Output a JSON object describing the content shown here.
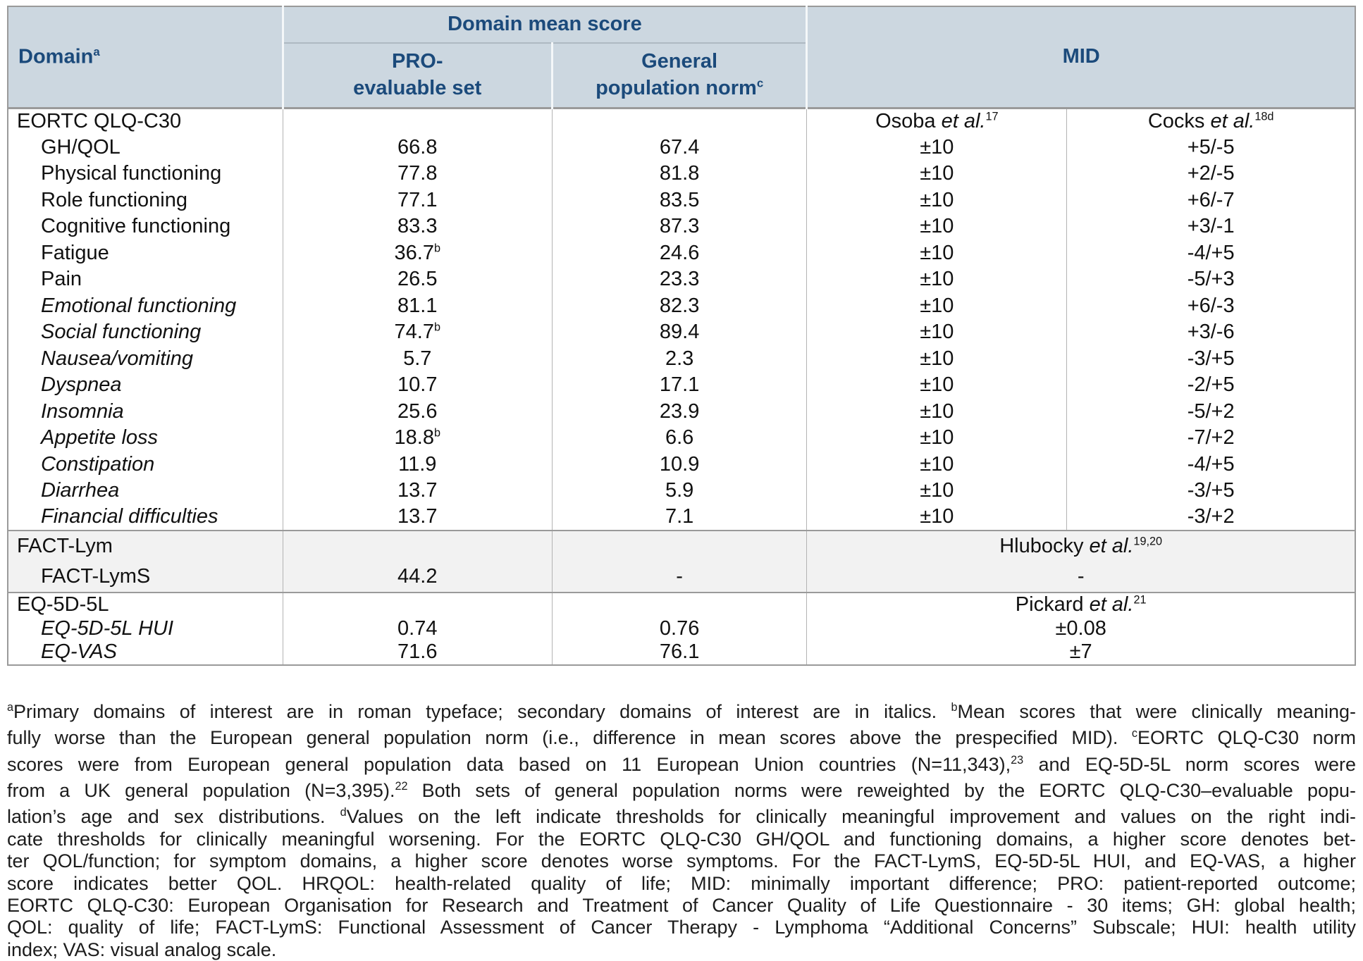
{
  "colors": {
    "header_bg": "#ccd7e0",
    "header_text": "#1b4a7b",
    "section_shade_bg": "#f2f2f2",
    "heavy_border": "#9a9a9a",
    "light_border": "#b3b3b3"
  },
  "table": {
    "header": {
      "domain_label": "Domain",
      "domain_sup": "a",
      "group_label": "Domain mean score",
      "col_pro_line1": "PRO-",
      "col_pro_line2": "evaluable set",
      "col_gen_line1": "General",
      "col_gen_line2": "population norm",
      "col_gen_sup": "c",
      "mid_label": "MID"
    },
    "sections": [
      {
        "id": "eortc",
        "shaded": false,
        "mid_split": true,
        "title_row": {
          "label": "EORTC QLQ-C30",
          "midA": {
            "text": "Osoba",
            "etal": "et al.",
            "sup": "17"
          },
          "midB": {
            "text": "Cocks",
            "etal": "et al.",
            "sup": "18d"
          }
        },
        "rows": [
          {
            "label": "GH/QOL",
            "italic": false,
            "pro": "66.8",
            "gen": "67.4",
            "midA": "±10",
            "midB": "+5/-5"
          },
          {
            "label": "Physical functioning",
            "italic": false,
            "pro": "77.8",
            "gen": "81.8",
            "midA": "±10",
            "midB": "+2/-5"
          },
          {
            "label": "Role functioning",
            "italic": false,
            "pro": "77.1",
            "gen": "83.5",
            "midA": "±10",
            "midB": "+6/-7"
          },
          {
            "label": "Cognitive functioning",
            "italic": false,
            "pro": "83.3",
            "gen": "87.3",
            "midA": "±10",
            "midB": "+3/-1"
          },
          {
            "label": "Fatigue",
            "italic": false,
            "pro": {
              "v": "36.7",
              "sup": "b"
            },
            "gen": "24.6",
            "midA": "±10",
            "midB": "-4/+5"
          },
          {
            "label": "Pain",
            "italic": false,
            "pro": "26.5",
            "gen": "23.3",
            "midA": "±10",
            "midB": "-5/+3"
          },
          {
            "label": "Emotional functioning",
            "italic": true,
            "pro": "81.1",
            "gen": "82.3",
            "midA": "±10",
            "midB": "+6/-3"
          },
          {
            "label": "Social functioning",
            "italic": true,
            "pro": {
              "v": "74.7",
              "sup": "b"
            },
            "gen": "89.4",
            "midA": "±10",
            "midB": "+3/-6"
          },
          {
            "label": "Nausea/vomiting",
            "italic": true,
            "pro": "5.7",
            "gen": "2.3",
            "midA": "±10",
            "midB": "-3/+5"
          },
          {
            "label": "Dyspnea",
            "italic": true,
            "pro": "10.7",
            "gen": "17.1",
            "midA": "±10",
            "midB": "-2/+5"
          },
          {
            "label": "Insomnia",
            "italic": true,
            "pro": "25.6",
            "gen": "23.9",
            "midA": "±10",
            "midB": "-5/+2"
          },
          {
            "label": "Appetite loss",
            "italic": true,
            "pro": {
              "v": "18.8",
              "sup": "b"
            },
            "gen": "6.6",
            "midA": "±10",
            "midB": "-7/+2"
          },
          {
            "label": "Constipation",
            "italic": true,
            "pro": "11.9",
            "gen": "10.9",
            "midA": "±10",
            "midB": "-4/+5"
          },
          {
            "label": "Diarrhea",
            "italic": true,
            "pro": "13.7",
            "gen": "5.9",
            "midA": "±10",
            "midB": "-3/+5"
          },
          {
            "label": "Financial difficulties",
            "italic": true,
            "pro": "13.7",
            "gen": "7.1",
            "midA": "±10",
            "midB": "-3/+2"
          }
        ]
      },
      {
        "id": "fact",
        "shaded": true,
        "mid_split": false,
        "title_row": {
          "label": "FACT-Lym",
          "mid": {
            "text": "Hlubocky",
            "etal": "et al.",
            "sup": "19,20"
          }
        },
        "rows": [
          {
            "label": "FACT-LymS",
            "italic": false,
            "pro": "44.2",
            "gen": "-",
            "mid": "-"
          }
        ]
      },
      {
        "id": "eq",
        "shaded": false,
        "mid_split": false,
        "title_row": {
          "label": "EQ-5D-5L",
          "mid": {
            "text": "Pickard",
            "etal": "et al.",
            "sup": "21"
          }
        },
        "rows": [
          {
            "label": "EQ-5D-5L HUI",
            "italic": true,
            "pro": "0.74",
            "gen": "0.76",
            "mid": "±0.08"
          },
          {
            "label": "EQ-VAS",
            "italic": true,
            "pro": "71.6",
            "gen": "76.1",
            "mid": "±7"
          }
        ]
      }
    ]
  },
  "footnotes": {
    "lines": [
      [
        {
          "sup": "a"
        },
        {
          "t": "Primary domains of interest are in roman typeface; secondary domains of interest are in italics. "
        },
        {
          "sup": "b"
        },
        {
          "t": "Mean scores that were clinically meaning-"
        }
      ],
      [
        {
          "t": "fully worse than the European general population norm (i.e., difference in mean scores above the prespecified MID). "
        },
        {
          "sup": "c"
        },
        {
          "t": "EORTC QLQ-C30 norm"
        }
      ],
      [
        {
          "t": "scores were from European general population data based on 11 European Union countries (N=11,343),"
        },
        {
          "sup": "23"
        },
        {
          "t": " and EQ-5D-5L norm scores were"
        }
      ],
      [
        {
          "t": "from a UK general population (N=3,395)."
        },
        {
          "sup": "22"
        },
        {
          "t": " Both sets of general population norms were reweighted by the EORTC QLQ-C30–evaluable popu-"
        }
      ],
      [
        {
          "t": "lation’s age and sex distributions. "
        },
        {
          "sup": "d"
        },
        {
          "t": "Values on the left indicate thresholds for clinically meaningful improvement and values on the right indi-"
        }
      ],
      [
        {
          "t": "cate thresholds for clinically meaningful worsening. For the EORTC QLQ-C30 GH/QOL and functioning domains, a higher score denotes bet-"
        }
      ],
      [
        {
          "t": "ter QOL/function; for symptom domains, a higher score denotes worse symptoms. For the FACT-LymS, EQ-5D-5L HUI, and EQ-VAS, a higher"
        }
      ],
      [
        {
          "t": "score indicates better QOL. HRQOL: health-related quality of life; MID: minimally important difference; PRO: patient-reported outcome;"
        }
      ],
      [
        {
          "t": "EORTC QLQ-C30: European Organisation for Research and Treatment of Cancer Quality of Life Questionnaire - 30 items; GH: global health;"
        }
      ],
      [
        {
          "t": "QOL: quality of life; FACT-LymS: Functional Assessment of Cancer Therapy - Lymphoma “Additional Concerns” Subscale; HUI: health utility"
        }
      ],
      [
        {
          "t": "index; VAS: visual analog scale."
        }
      ]
    ]
  }
}
